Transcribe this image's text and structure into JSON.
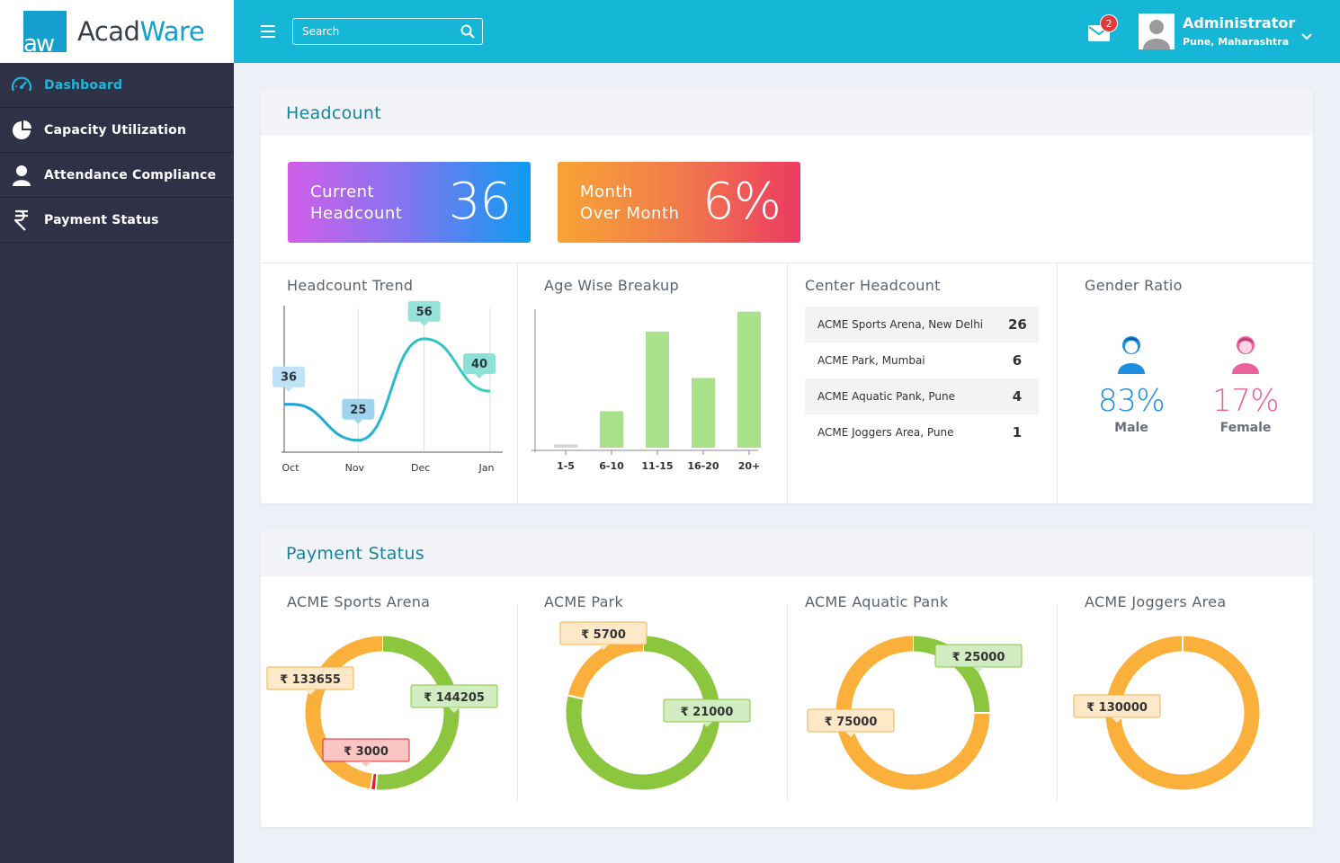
{
  "app": {
    "logo_mark": "aw",
    "name_part1": "Acad",
    "name_part2": "Ware"
  },
  "sidebar": {
    "items": [
      {
        "label": "Dashboard",
        "icon": "dashboard-gauge-icon",
        "active": true
      },
      {
        "label": "Capacity Utilization",
        "icon": "pie-chart-icon",
        "active": false
      },
      {
        "label": "Attendance Compliance",
        "icon": "user-icon",
        "active": false
      },
      {
        "label": "Payment Status",
        "icon": "rupee-icon",
        "active": false
      }
    ]
  },
  "topbar": {
    "search_placeholder": "Search",
    "mail_badge": "2",
    "user_name": "Administrator",
    "user_location": "Pune, Maharashtra"
  },
  "headcount": {
    "title": "Headcount",
    "current": {
      "label_line1": "Current",
      "label_line2": "Headcount",
      "value": "36"
    },
    "mom": {
      "label_line1": "Month",
      "label_line2": "Over Month",
      "value": "6%"
    },
    "trend_title": "Headcount Trend",
    "age_title": "Age Wise Breakup",
    "center_title": "Center Headcount",
    "gender_title": "Gender Ratio",
    "centers": [
      {
        "name": "ACME Sports Arena, New Delhi",
        "count": "26"
      },
      {
        "name": "ACME Park, Mumbai",
        "count": "6"
      },
      {
        "name": "ACME Aquatic Pank, Pune",
        "count": "4"
      },
      {
        "name": "ACME Joggers Area, Pune",
        "count": "1"
      }
    ],
    "gender": {
      "male": {
        "pct": "83%",
        "label": "Male",
        "color": "#1e8fe0"
      },
      "female": {
        "pct": "17%",
        "label": "Female",
        "color": "#e9629a"
      }
    }
  },
  "payment": {
    "title": "Payment Status",
    "centers": [
      "ACME Sports Arena",
      "ACME Park",
      "ACME Aquatic Pank",
      "ACME Joggers Area"
    ]
  },
  "colors": {
    "green": "#8cc63f",
    "orange": "#fbb03b",
    "red": "#ed1c24",
    "bar": "#a9e08a",
    "teal": "#16b6d7"
  },
  "chart_data": [
    {
      "type": "line",
      "title": "Headcount Trend",
      "categories": [
        "Oct",
        "Nov",
        "Dec",
        "Jan"
      ],
      "series": [
        {
          "values": [
            36,
            25,
            56,
            40
          ]
        }
      ]
    },
    {
      "type": "bar",
      "title": "Age Wise Breakup",
      "categories": [
        "1-5",
        "6-10",
        "11-15",
        "16-20",
        "20+"
      ],
      "values": [
        1,
        11,
        35,
        21,
        41
      ],
      "ylim": [
        0,
        42
      ]
    },
    {
      "type": "pie",
      "title": "ACME Sports Arena",
      "slices": [
        {
          "value": 144205,
          "label": "₹ 144205",
          "color": "#8cc63f"
        },
        {
          "value": 3000,
          "label": "₹ 3000",
          "color": "#ed1c24"
        },
        {
          "value": 133655,
          "label": "₹ 133655",
          "color": "#fbb03b"
        }
      ]
    },
    {
      "type": "pie",
      "title": "ACME Park",
      "slices": [
        {
          "value": 21000,
          "label": "₹ 21000",
          "color": "#8cc63f"
        },
        {
          "value": 5700,
          "label": "₹ 5700",
          "color": "#fbb03b"
        }
      ]
    },
    {
      "type": "pie",
      "title": "ACME Aquatic Pank",
      "slices": [
        {
          "value": 25000,
          "label": "₹ 25000",
          "color": "#8cc63f"
        },
        {
          "value": 75000,
          "label": "₹ 75000",
          "color": "#fbb03b"
        }
      ]
    },
    {
      "type": "pie",
      "title": "ACME Joggers Area",
      "slices": [
        {
          "value": 130000,
          "label": "₹ 130000",
          "color": "#fbb03b"
        }
      ]
    }
  ]
}
